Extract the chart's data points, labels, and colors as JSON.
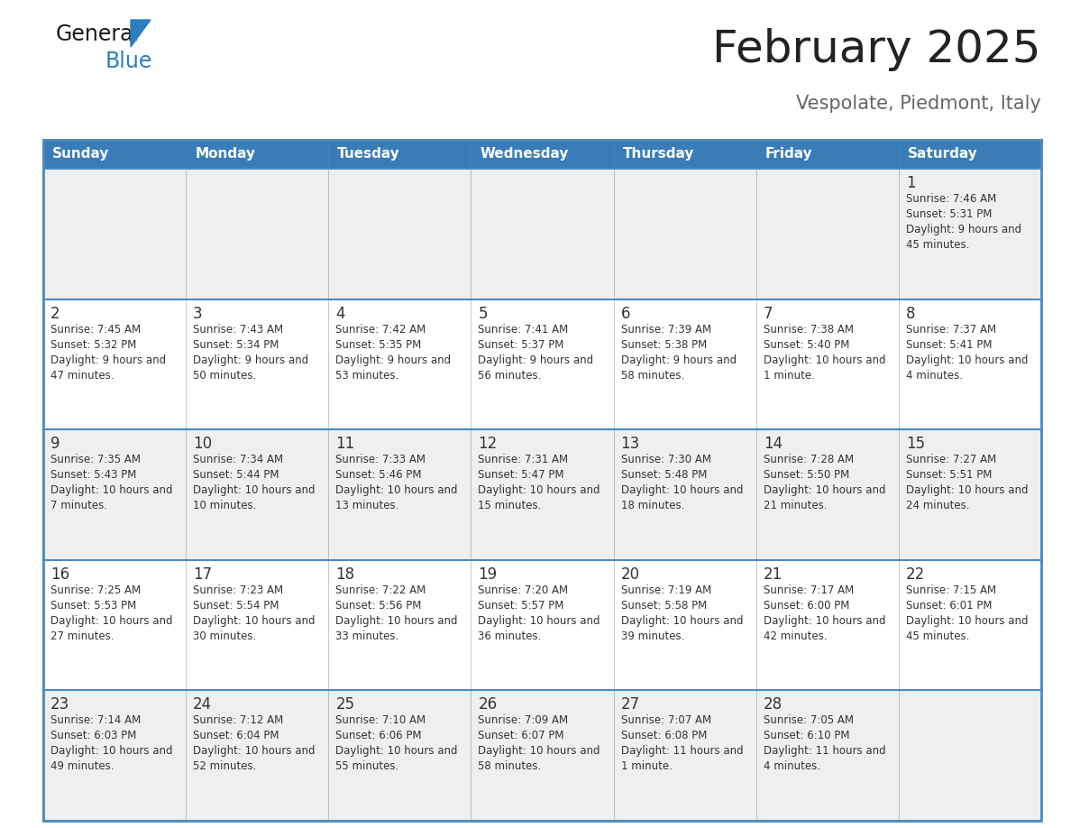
{
  "title": "February 2025",
  "subtitle": "Vespolate, Piedmont, Italy",
  "days_of_week": [
    "Sunday",
    "Monday",
    "Tuesday",
    "Wednesday",
    "Thursday",
    "Friday",
    "Saturday"
  ],
  "header_bg": "#3a7cb8",
  "header_text": "#ffffff",
  "row_bg_gray": "#efefef",
  "row_bg_white": "#ffffff",
  "separator_color": "#4a8bbf",
  "day_number_color": "#333333",
  "info_text_color": "#333333",
  "title_color": "#222222",
  "subtitle_color": "#666666",
  "logo_general_color": "#1a1a1a",
  "logo_blue_color": "#2b7ec1",
  "calendar_data": [
    {
      "day": 1,
      "col": 6,
      "row": 0,
      "sunrise": "7:46 AM",
      "sunset": "5:31 PM",
      "daylight": "9 hours and 45 minutes"
    },
    {
      "day": 2,
      "col": 0,
      "row": 1,
      "sunrise": "7:45 AM",
      "sunset": "5:32 PM",
      "daylight": "9 hours and 47 minutes"
    },
    {
      "day": 3,
      "col": 1,
      "row": 1,
      "sunrise": "7:43 AM",
      "sunset": "5:34 PM",
      "daylight": "9 hours and 50 minutes"
    },
    {
      "day": 4,
      "col": 2,
      "row": 1,
      "sunrise": "7:42 AM",
      "sunset": "5:35 PM",
      "daylight": "9 hours and 53 minutes"
    },
    {
      "day": 5,
      "col": 3,
      "row": 1,
      "sunrise": "7:41 AM",
      "sunset": "5:37 PM",
      "daylight": "9 hours and 56 minutes"
    },
    {
      "day": 6,
      "col": 4,
      "row": 1,
      "sunrise": "7:39 AM",
      "sunset": "5:38 PM",
      "daylight": "9 hours and 58 minutes"
    },
    {
      "day": 7,
      "col": 5,
      "row": 1,
      "sunrise": "7:38 AM",
      "sunset": "5:40 PM",
      "daylight": "10 hours and 1 minute"
    },
    {
      "day": 8,
      "col": 6,
      "row": 1,
      "sunrise": "7:37 AM",
      "sunset": "5:41 PM",
      "daylight": "10 hours and 4 minutes"
    },
    {
      "day": 9,
      "col": 0,
      "row": 2,
      "sunrise": "7:35 AM",
      "sunset": "5:43 PM",
      "daylight": "10 hours and 7 minutes"
    },
    {
      "day": 10,
      "col": 1,
      "row": 2,
      "sunrise": "7:34 AM",
      "sunset": "5:44 PM",
      "daylight": "10 hours and 10 minutes"
    },
    {
      "day": 11,
      "col": 2,
      "row": 2,
      "sunrise": "7:33 AM",
      "sunset": "5:46 PM",
      "daylight": "10 hours and 13 minutes"
    },
    {
      "day": 12,
      "col": 3,
      "row": 2,
      "sunrise": "7:31 AM",
      "sunset": "5:47 PM",
      "daylight": "10 hours and 15 minutes"
    },
    {
      "day": 13,
      "col": 4,
      "row": 2,
      "sunrise": "7:30 AM",
      "sunset": "5:48 PM",
      "daylight": "10 hours and 18 minutes"
    },
    {
      "day": 14,
      "col": 5,
      "row": 2,
      "sunrise": "7:28 AM",
      "sunset": "5:50 PM",
      "daylight": "10 hours and 21 minutes"
    },
    {
      "day": 15,
      "col": 6,
      "row": 2,
      "sunrise": "7:27 AM",
      "sunset": "5:51 PM",
      "daylight": "10 hours and 24 minutes"
    },
    {
      "day": 16,
      "col": 0,
      "row": 3,
      "sunrise": "7:25 AM",
      "sunset": "5:53 PM",
      "daylight": "10 hours and 27 minutes"
    },
    {
      "day": 17,
      "col": 1,
      "row": 3,
      "sunrise": "7:23 AM",
      "sunset": "5:54 PM",
      "daylight": "10 hours and 30 minutes"
    },
    {
      "day": 18,
      "col": 2,
      "row": 3,
      "sunrise": "7:22 AM",
      "sunset": "5:56 PM",
      "daylight": "10 hours and 33 minutes"
    },
    {
      "day": 19,
      "col": 3,
      "row": 3,
      "sunrise": "7:20 AM",
      "sunset": "5:57 PM",
      "daylight": "10 hours and 36 minutes"
    },
    {
      "day": 20,
      "col": 4,
      "row": 3,
      "sunrise": "7:19 AM",
      "sunset": "5:58 PM",
      "daylight": "10 hours and 39 minutes"
    },
    {
      "day": 21,
      "col": 5,
      "row": 3,
      "sunrise": "7:17 AM",
      "sunset": "6:00 PM",
      "daylight": "10 hours and 42 minutes"
    },
    {
      "day": 22,
      "col": 6,
      "row": 3,
      "sunrise": "7:15 AM",
      "sunset": "6:01 PM",
      "daylight": "10 hours and 45 minutes"
    },
    {
      "day": 23,
      "col": 0,
      "row": 4,
      "sunrise": "7:14 AM",
      "sunset": "6:03 PM",
      "daylight": "10 hours and 49 minutes"
    },
    {
      "day": 24,
      "col": 1,
      "row": 4,
      "sunrise": "7:12 AM",
      "sunset": "6:04 PM",
      "daylight": "10 hours and 52 minutes"
    },
    {
      "day": 25,
      "col": 2,
      "row": 4,
      "sunrise": "7:10 AM",
      "sunset": "6:06 PM",
      "daylight": "10 hours and 55 minutes"
    },
    {
      "day": 26,
      "col": 3,
      "row": 4,
      "sunrise": "7:09 AM",
      "sunset": "6:07 PM",
      "daylight": "10 hours and 58 minutes"
    },
    {
      "day": 27,
      "col": 4,
      "row": 4,
      "sunrise": "7:07 AM",
      "sunset": "6:08 PM",
      "daylight": "11 hours and 1 minute"
    },
    {
      "day": 28,
      "col": 5,
      "row": 4,
      "sunrise": "7:05 AM",
      "sunset": "6:10 PM",
      "daylight": "11 hours and 4 minutes"
    }
  ]
}
